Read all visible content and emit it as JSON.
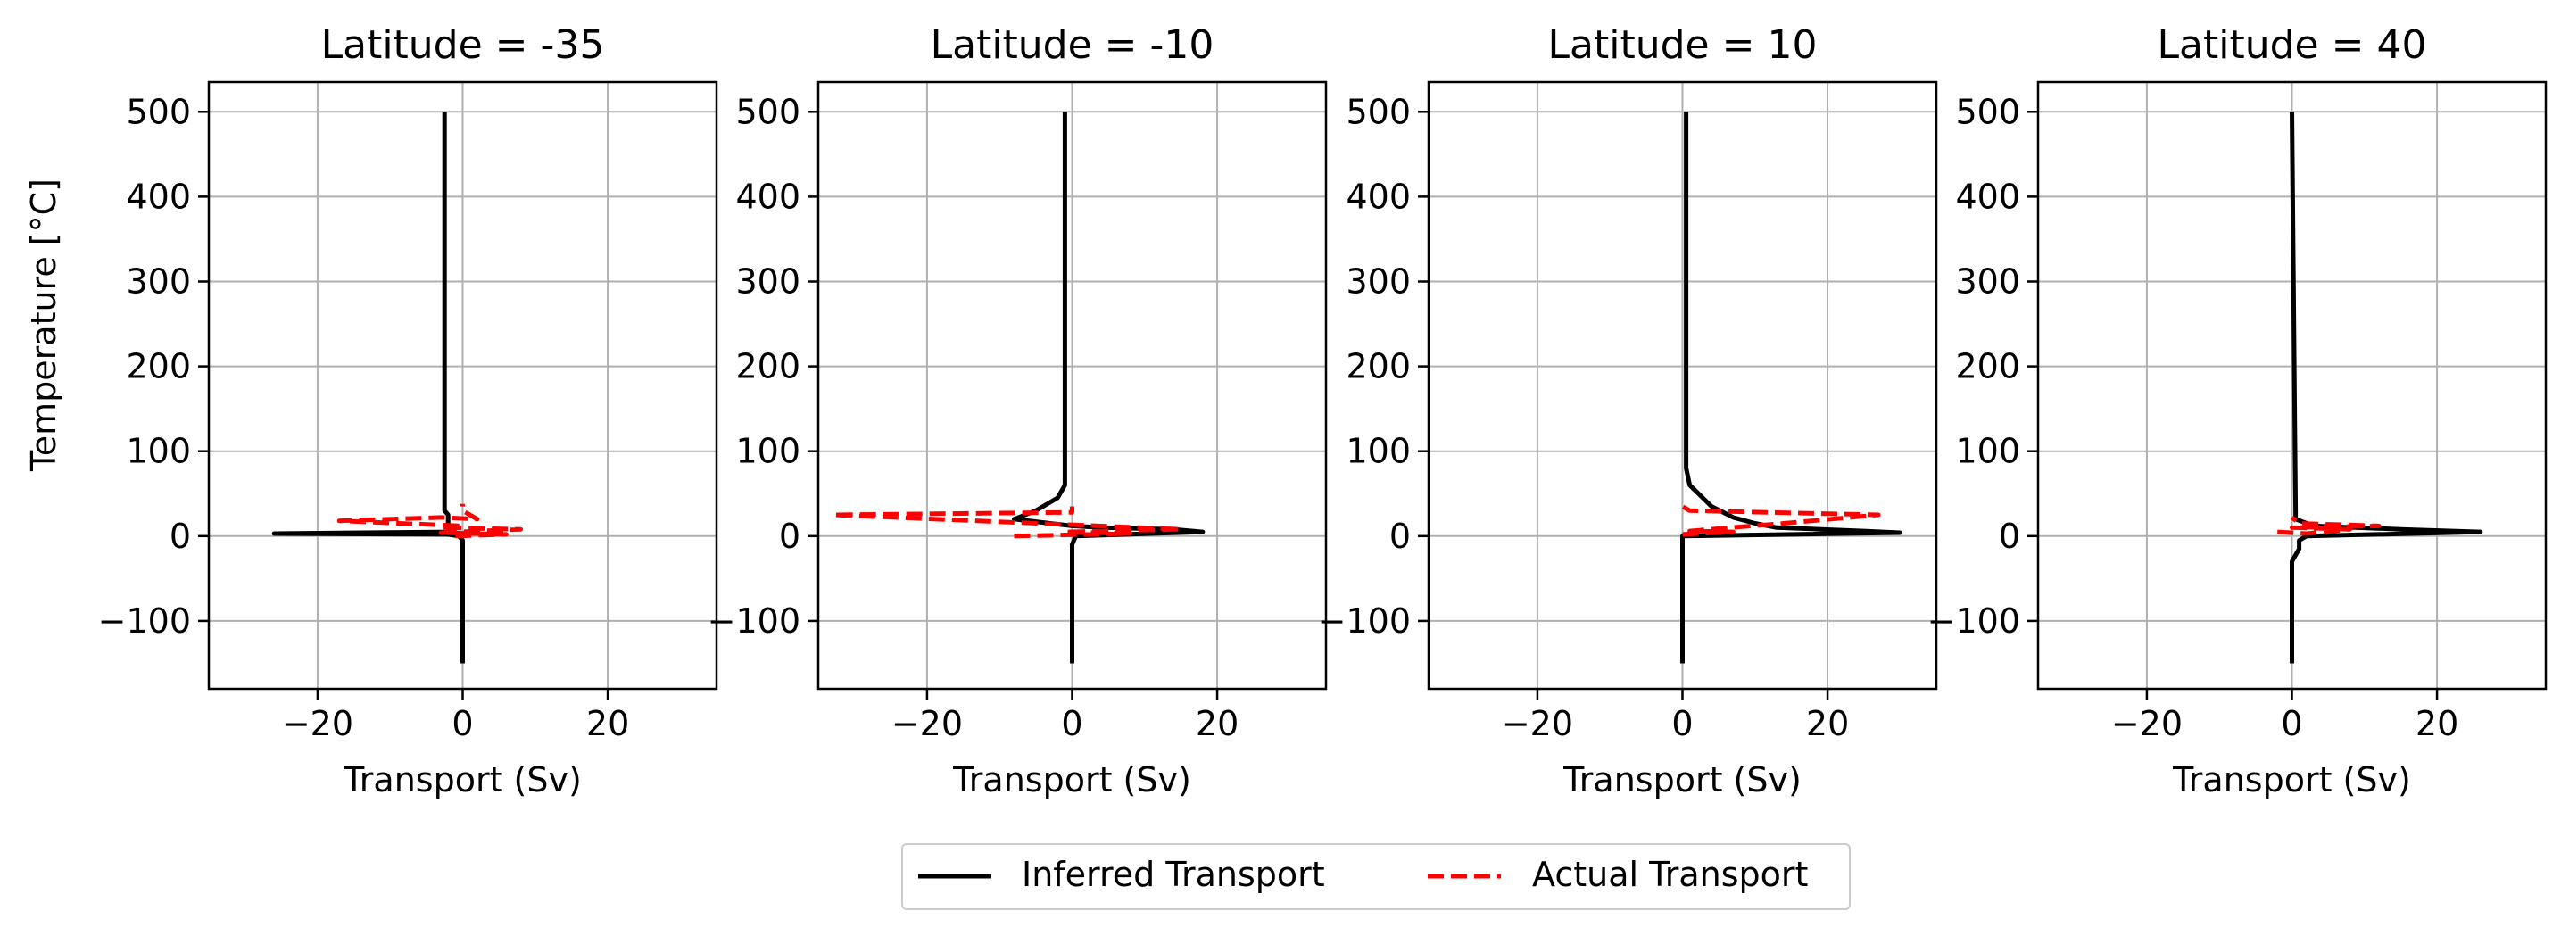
{
  "figure": {
    "legend": {
      "placement": "bottom-center",
      "entries": [
        {
          "label": "Inferred Transport",
          "color": "#000000",
          "style": "solid"
        },
        {
          "label": "Actual Transport",
          "color": "#ff0000",
          "style": "dashed"
        }
      ]
    }
  },
  "chart_data": [
    {
      "type": "line",
      "title": "Latitude = -35",
      "xlabel": "Transport (Sv)",
      "ylabel": "Temperature [$^{\\circ}$C]",
      "xlim": [
        -35,
        35
      ],
      "ylim": [
        -180,
        535
      ],
      "xticks": [
        -20,
        0,
        20
      ],
      "xtick_labels": [
        "−20",
        "0",
        "20"
      ],
      "yticks": [
        -100,
        0,
        100,
        200,
        300,
        400,
        500
      ],
      "ytick_labels": [
        "−100",
        "0",
        "100",
        "200",
        "300",
        "400",
        "500"
      ],
      "grid": true,
      "series": [
        {
          "name": "Inferred Transport",
          "color": "#000000",
          "style": "solid",
          "x": [
            0,
            0,
            0,
            -0.5,
            -2,
            -26,
            -2,
            -2,
            -2,
            -2.5,
            -2.5
          ],
          "y": [
            -150,
            -50,
            -5,
            0,
            2,
            3,
            5,
            15,
            25,
            30,
            500
          ]
        },
        {
          "name": "Actual Transport",
          "color": "#ff0000",
          "style": "dashed",
          "x": [
            -1,
            6,
            -3,
            8,
            -3,
            0,
            -17,
            -3,
            2,
            0,
            0
          ],
          "y": [
            0,
            2,
            4,
            8,
            10,
            12,
            18,
            22,
            20,
            30,
            38
          ]
        }
      ]
    },
    {
      "type": "line",
      "title": "Latitude = -10",
      "xlabel": "Transport (Sv)",
      "ylabel": "",
      "xlim": [
        -35,
        35
      ],
      "ylim": [
        -180,
        535
      ],
      "xticks": [
        -20,
        0,
        20
      ],
      "xtick_labels": [
        "−20",
        "0",
        "20"
      ],
      "yticks": [
        -100,
        0,
        100,
        200,
        300,
        400,
        500
      ],
      "ytick_labels": [
        "−100",
        "0",
        "100",
        "200",
        "300",
        "400",
        "500"
      ],
      "grid": true,
      "series": [
        {
          "name": "Inferred Transport",
          "color": "#000000",
          "style": "solid",
          "x": [
            0,
            0,
            0.5,
            18,
            14,
            4,
            0,
            -8,
            -5,
            -2,
            -1,
            -1
          ],
          "y": [
            -150,
            -10,
            0,
            5,
            8,
            10,
            12,
            20,
            30,
            45,
            60,
            500
          ]
        },
        {
          "name": "Actual Transport",
          "color": "#ff0000",
          "style": "dashed",
          "x": [
            -8,
            8,
            -1,
            15,
            -33,
            0,
            0
          ],
          "y": [
            0,
            3,
            5,
            8,
            25,
            28,
            35
          ]
        }
      ]
    },
    {
      "type": "line",
      "title": "Latitude = 10",
      "xlabel": "Transport (Sv)",
      "ylabel": "",
      "xlim": [
        -35,
        35
      ],
      "ylim": [
        -180,
        535
      ],
      "xticks": [
        -20,
        0,
        20
      ],
      "xtick_labels": [
        "−20",
        "0",
        "20"
      ],
      "yticks": [
        -100,
        0,
        100,
        200,
        300,
        400,
        500
      ],
      "ytick_labels": [
        "−100",
        "0",
        "100",
        "200",
        "300",
        "400",
        "500"
      ],
      "grid": true,
      "series": [
        {
          "name": "Inferred Transport",
          "color": "#000000",
          "style": "solid",
          "x": [
            0,
            0,
            0,
            30,
            25,
            13,
            10,
            7,
            4,
            1,
            0.5,
            0.5
          ],
          "y": [
            -150,
            -10,
            0,
            4,
            6,
            10,
            15,
            22,
            35,
            60,
            80,
            500
          ]
        },
        {
          "name": "Actual Transport",
          "color": "#ff0000",
          "style": "dashed",
          "x": [
            0,
            7,
            1,
            14,
            27,
            1,
            0
          ],
          "y": [
            2,
            5,
            6,
            15,
            25,
            30,
            35
          ]
        }
      ]
    },
    {
      "type": "line",
      "title": "Latitude = 40",
      "xlabel": "Transport (Sv)",
      "ylabel": "",
      "xlim": [
        -35,
        35
      ],
      "ylim": [
        -180,
        535
      ],
      "xticks": [
        -20,
        0,
        20
      ],
      "xtick_labels": [
        "−20",
        "0",
        "20"
      ],
      "yticks": [
        -100,
        0,
        100,
        200,
        300,
        400,
        500
      ],
      "ytick_labels": [
        "−100",
        "0",
        "100",
        "200",
        "300",
        "400",
        "500"
      ],
      "grid": true,
      "series": [
        {
          "name": "Inferred Transport",
          "color": "#000000",
          "style": "solid",
          "x": [
            0,
            0,
            1,
            1,
            2,
            26,
            15,
            3,
            0.5,
            0.5,
            0
          ],
          "y": [
            -150,
            -30,
            -15,
            -5,
            0,
            5,
            8,
            12,
            20,
            30,
            500
          ]
        },
        {
          "name": "Actual Transport",
          "color": "#ff0000",
          "style": "dashed",
          "x": [
            -2,
            2,
            8,
            0,
            12,
            1,
            0
          ],
          "y": [
            5,
            3,
            8,
            10,
            12,
            15,
            22
          ]
        }
      ]
    }
  ]
}
